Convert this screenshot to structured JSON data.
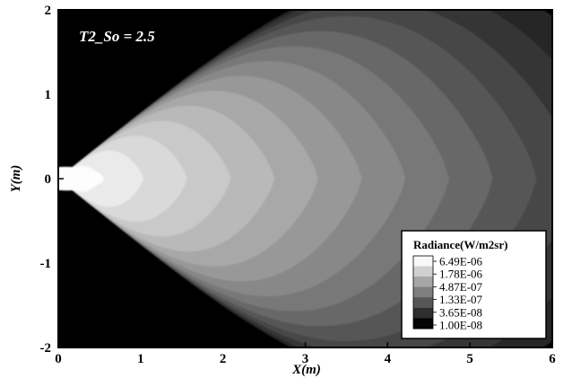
{
  "chart_data": {
    "type": "heatmap",
    "title": "T2_So = 2.5",
    "xlabel": "X(m)",
    "ylabel": "Y(m)",
    "xlim": [
      0,
      6
    ],
    "ylim": [
      -2,
      2
    ],
    "x_ticks": [
      "0",
      "1",
      "2",
      "3",
      "4",
      "5",
      "6"
    ],
    "y_ticks": [
      "-2",
      "-1",
      "0",
      "1",
      "2"
    ],
    "grid": false,
    "legend": {
      "title": "Radiance(W/m2sr)",
      "placement": "bottom-right",
      "entries": [
        "6.49E-06",
        "1.78E-06",
        "4.87E-07",
        "1.33E-07",
        "3.65E-08",
        "1.00E-08"
      ]
    },
    "contour_levels": {
      "scale": "log",
      "levels": [
        1e-08,
        3.65e-08,
        1.33e-07,
        4.87e-07,
        1.78e-06,
        6.49e-06
      ],
      "colors": [
        "#050505",
        "#2e2e2e",
        "#575757",
        "#7e7e7e",
        "#a6a6a6",
        "#d0d0d0",
        "#f8f8f8"
      ],
      "band_count": 14
    }
  }
}
